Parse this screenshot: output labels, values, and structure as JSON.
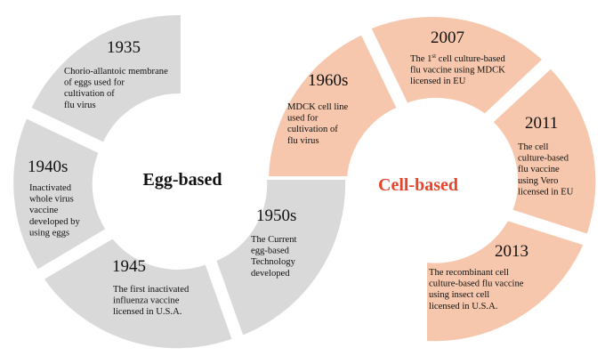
{
  "colors": {
    "egg_segment": "#d9d9d9",
    "cell_segment": "#f6c7ac",
    "egg_title": "#111111",
    "cell_title": "#e4462b",
    "separator": "#ffffff"
  },
  "egg": {
    "title": "Egg-based",
    "segments": [
      {
        "year": "1935",
        "lines": [
          "Chorio-allantoic membrane",
          "of eggs used for",
          "cultivation of",
          "flu virus"
        ]
      },
      {
        "year": "1940s",
        "lines": [
          "Inactivated",
          "whole virus",
          "vaccine",
          "developed by",
          "using eggs"
        ]
      },
      {
        "year": "1945",
        "lines": [
          "The first inactivated",
          "influenza vaccine",
          "licensed in U.S.A."
        ]
      },
      {
        "year": "1950s",
        "lines": [
          "The Current",
          "egg-based",
          "Technology",
          "developed"
        ]
      }
    ]
  },
  "cell": {
    "title": "Cell-based",
    "segments": [
      {
        "year": "1960s",
        "lines": [
          "MDCK cell line",
          "used for",
          "cultivation of",
          "flu virus"
        ]
      },
      {
        "year": "2007",
        "lines": [
          "The 1st cell culture-based",
          "flu vaccine using MDCK",
          "licensed in EU"
        ]
      },
      {
        "year": "2011",
        "lines": [
          "The cell",
          "culture-based",
          "flu vaccine",
          "using Vero",
          "licensed in EU"
        ]
      },
      {
        "year": "2013",
        "lines": [
          "The recombinant cell",
          "culture-based flu vaccine",
          "using insect cell",
          "licensed in U.S.A."
        ]
      }
    ]
  }
}
